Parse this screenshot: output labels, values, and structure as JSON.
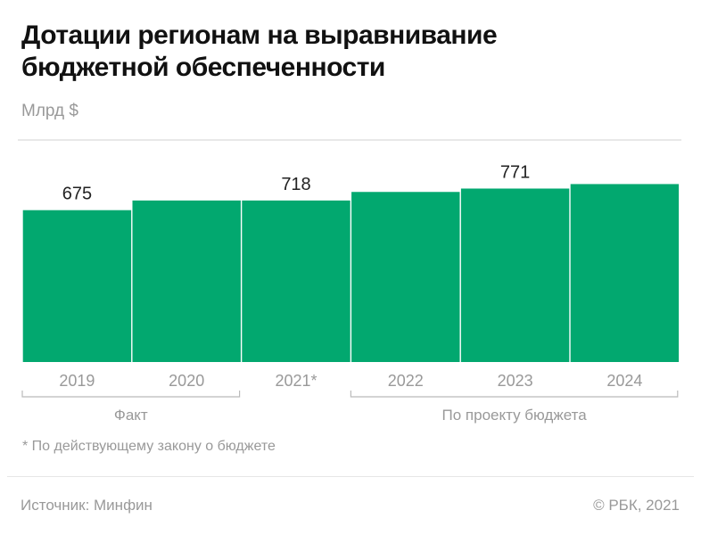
{
  "chart_data": {
    "type": "bar",
    "title": "Дотации регионам на выравнивание бюджетной обеспеченности",
    "unit": "Млрд $",
    "categories": [
      "2019",
      "2020",
      "2021*",
      "2022",
      "2023",
      "2024"
    ],
    "values": [
      675,
      718,
      718,
      756,
      771,
      791
    ],
    "data_labels": [
      "675",
      "",
      "718",
      "",
      "771",
      ""
    ],
    "ylim": [
      0,
      800
    ],
    "grid": false,
    "bar_color": "#02a86f",
    "groups": [
      {
        "label": "Факт",
        "from": 0,
        "to": 1
      },
      {
        "label": "По проекту бюджета",
        "from": 3,
        "to": 5
      }
    ],
    "footnote": "* По действующему закону о бюджете"
  },
  "footer": {
    "source": "Источник: Минфин",
    "copyright": "©  РБК, 2021"
  }
}
